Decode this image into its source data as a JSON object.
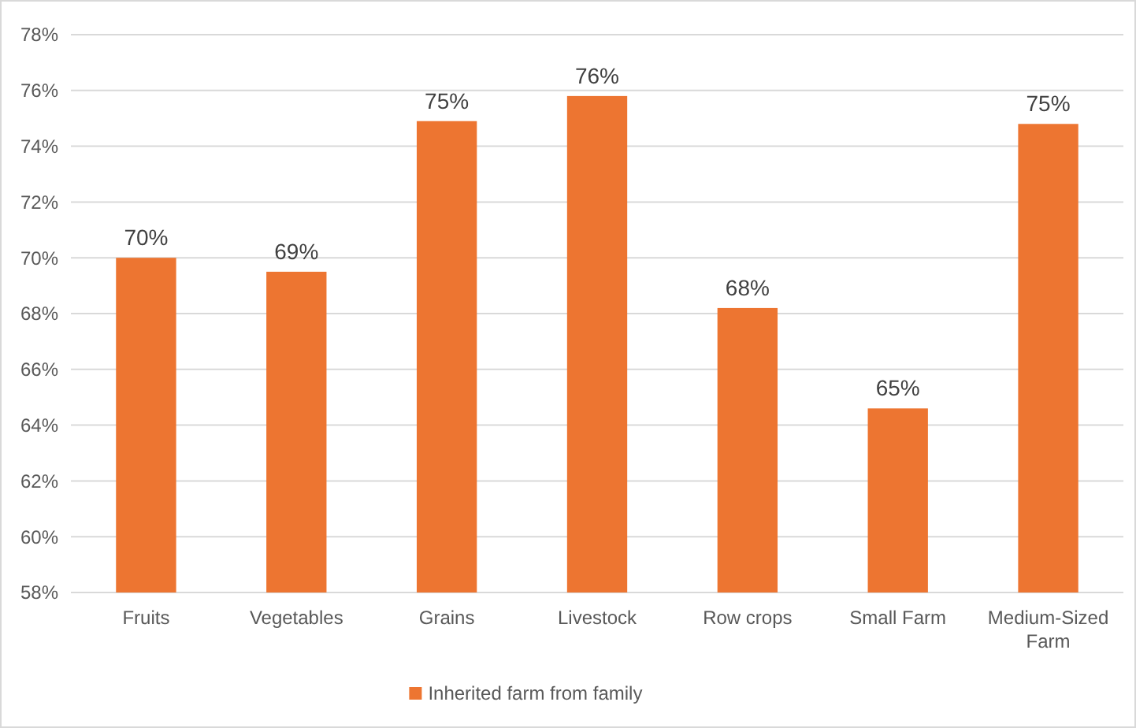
{
  "chart_data": {
    "type": "bar",
    "categories": [
      "Fruits",
      "Vegetables",
      "Grains",
      "Livestock",
      "Row crops",
      "Small Farm",
      "Medium-Sized Farm"
    ],
    "series": [
      {
        "name": "Inherited farm from family",
        "color": "#ed7531",
        "values": [
          70.0,
          69.5,
          74.9,
          75.8,
          68.2,
          64.6,
          74.8
        ],
        "value_labels": [
          "70%",
          "69%",
          "75%",
          "76%",
          "68%",
          "65%",
          "75%"
        ]
      }
    ],
    "ylim": [
      58,
      78
    ],
    "yticks": [
      {
        "value": 58,
        "label": "58%"
      },
      {
        "value": 60,
        "label": "60%"
      },
      {
        "value": 62,
        "label": "62%"
      },
      {
        "value": 64,
        "label": "64%"
      },
      {
        "value": 66,
        "label": "66%"
      },
      {
        "value": 68,
        "label": "68%"
      },
      {
        "value": 70,
        "label": "70%"
      },
      {
        "value": 72,
        "label": "72%"
      },
      {
        "value": 74,
        "label": "74%"
      },
      {
        "value": 76,
        "label": "76%"
      },
      {
        "value": 78,
        "label": "78%"
      }
    ],
    "grid": "y",
    "legend": "bottom"
  }
}
